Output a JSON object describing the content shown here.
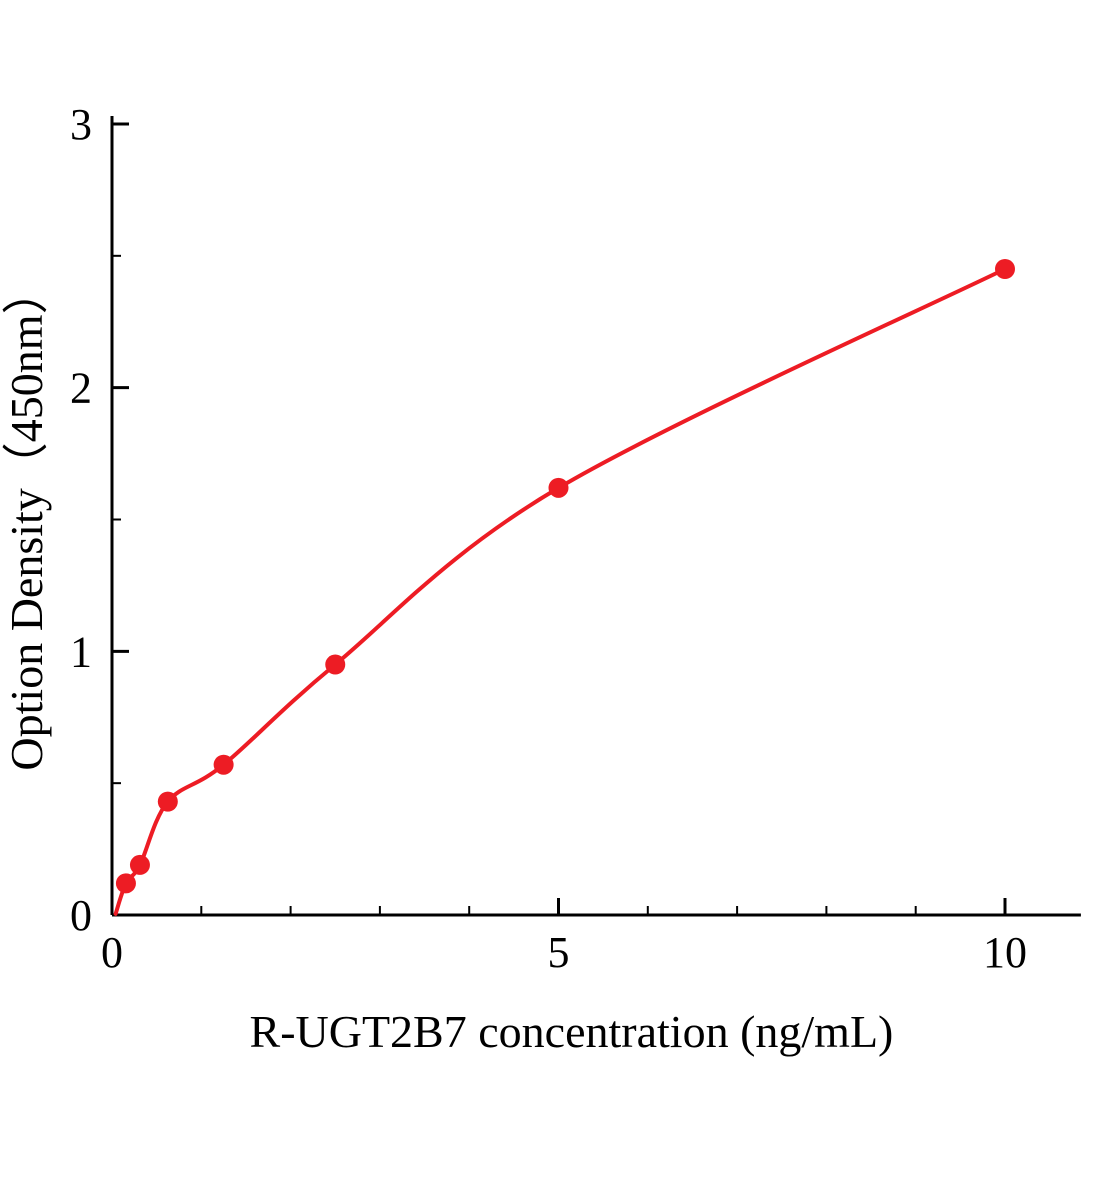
{
  "figure": {
    "background_color": "#ffffff",
    "kind": "ELISA standard curve plot"
  },
  "chart_data": {
    "type": "scatter",
    "title": "",
    "xlabel": "R-UGT2B7 concentration (ng/mL)",
    "ylabel": "Option Density（450nm）",
    "x": [
      0.156,
      0.313,
      0.625,
      1.25,
      2.5,
      5,
      10
    ],
    "y": [
      0.12,
      0.19,
      0.43,
      0.57,
      0.95,
      1.62,
      2.45
    ],
    "curve": "smooth fitted curve through points starting near origin",
    "xlim": [
      0,
      10.85
    ],
    "ylim": [
      0,
      3
    ],
    "xticks": [
      0,
      5,
      10
    ],
    "yticks": [
      0,
      1,
      2,
      3
    ],
    "xtick_labels": [
      "0",
      "5",
      "10"
    ],
    "ytick_labels": [
      "0",
      "1",
      "2",
      "3"
    ],
    "x_minor_step": 1,
    "y_minor_step": 0.5,
    "grid": false,
    "legend": false,
    "point_color": "#ed1c24",
    "line_color": "#ed1c24",
    "axis_color": "#000000"
  }
}
